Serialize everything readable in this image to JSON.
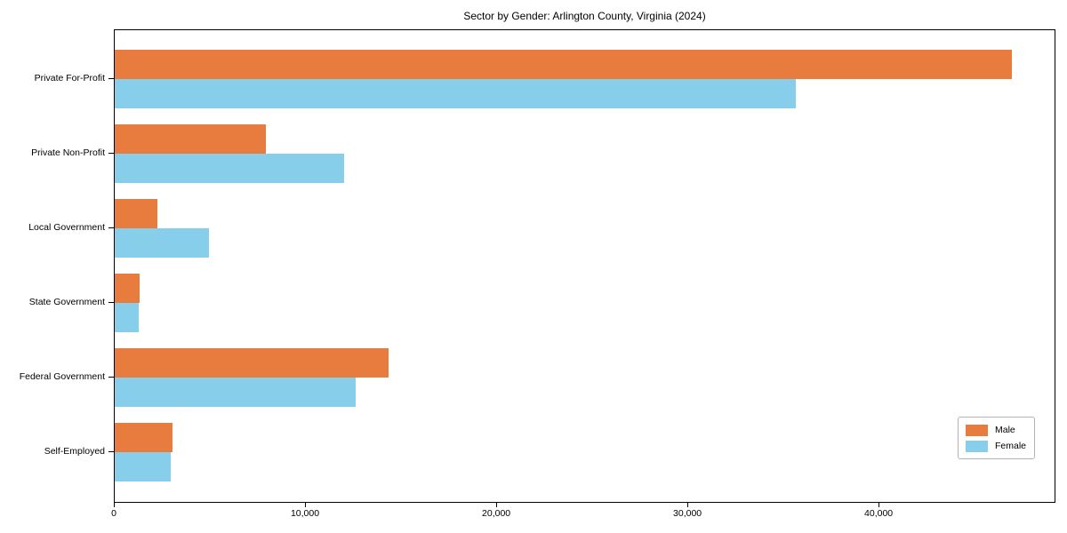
{
  "chart_data": {
    "type": "bar",
    "orientation": "horizontal",
    "title": "Sector by Gender: Arlington County, Virginia (2024)",
    "categories": [
      "Private For-Profit",
      "Private Non-Profit",
      "Local Government",
      "State Government",
      "Federal Government",
      "Self-Employed"
    ],
    "series": [
      {
        "name": "Male",
        "color": "#E87B3E",
        "values": [
          46900,
          7900,
          2250,
          1300,
          14300,
          3000
        ]
      },
      {
        "name": "Female",
        "color": "#87CEEB",
        "values": [
          35600,
          12000,
          4950,
          1250,
          12600,
          2950
        ]
      }
    ],
    "xlabel": "",
    "ylabel": "",
    "xlim": [
      0,
      49250
    ],
    "x_ticks": [
      {
        "value": 0,
        "label": "0"
      },
      {
        "value": 10000,
        "label": "10,000"
      },
      {
        "value": 20000,
        "label": "20,000"
      },
      {
        "value": 30000,
        "label": "30,000"
      },
      {
        "value": 40000,
        "label": "40,000"
      }
    ],
    "legend": {
      "position": "lower right",
      "entries": [
        "Male",
        "Female"
      ]
    },
    "grid": false
  }
}
